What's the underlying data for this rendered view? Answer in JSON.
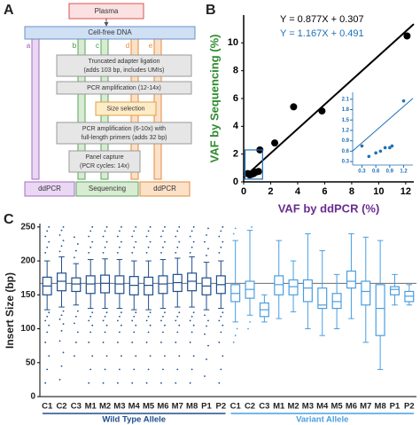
{
  "diagram": {
    "panel_label": "A",
    "source": "Plasma",
    "pool": "Cell-free DNA",
    "lanes": [
      "a",
      "b",
      "c",
      "d",
      "e"
    ],
    "steps": [
      {
        "lines": [
          "Truncated adapter ligation",
          "(adds 103 bp, includes UMIs)"
        ]
      },
      {
        "lines": [
          "PCR amplification (12-14x)"
        ]
      },
      {
        "lines": [
          "Size selection"
        ]
      },
      {
        "lines": [
          "PCR amplification (6-10x) with",
          "full-length primers (adds 32 bp)"
        ]
      },
      {
        "lines": [
          "Panel capture",
          "(PCR cycles: 14x)"
        ]
      }
    ],
    "outputs": [
      "ddPCR",
      "Sequencing",
      "ddPCR"
    ]
  },
  "chart_data": [
    {
      "type": "scatter",
      "panel_label": "B",
      "x_label": "VAF by ddPCR (%)",
      "y_label": "VAF by Sequencing (%)",
      "x": [
        0.3,
        0.45,
        0.6,
        0.75,
        0.9,
        1.1,
        1.2,
        2.3,
        3.7,
        5.8,
        12.1
      ],
      "y": [
        0.6,
        0.5,
        0.55,
        0.6,
        0.7,
        0.75,
        2.3,
        2.8,
        5.4,
        5.1,
        10.5
      ],
      "color": "#000000",
      "xlim": [
        0,
        12.6
      ],
      "ylim": [
        0,
        12
      ],
      "xticks": [
        0,
        2,
        4,
        6,
        8,
        10,
        12
      ],
      "yticks": [
        0,
        2,
        4,
        6,
        8,
        10
      ],
      "fit": {
        "slope": 0.877,
        "intercept": 0.307,
        "label": "Y = 0.877X + 0.307"
      }
    },
    {
      "type": "scatter",
      "inset": true,
      "x": [
        0.3,
        0.45,
        0.6,
        0.7,
        0.8,
        0.9,
        0.95,
        1.2
      ],
      "y": [
        0.75,
        0.45,
        0.55,
        0.6,
        0.7,
        0.7,
        0.75,
        2.05
      ],
      "color": "#1f6fb5",
      "xlim": [
        0.1,
        1.4
      ],
      "ylim": [
        0.2,
        2.3
      ],
      "xticks": [
        0.3,
        0.6,
        0.9,
        1.2
      ],
      "yticks": [
        0.3,
        0.6,
        0.9,
        1.2,
        1.5,
        1.8,
        2.1
      ],
      "fit": {
        "slope": 1.167,
        "intercept": 0.491,
        "label": "Y = 1.167X + 0.491"
      }
    },
    {
      "type": "box",
      "panel_label": "C",
      "y_label": "Insert Size (bp)",
      "ylim": [
        0,
        255
      ],
      "yticks": [
        0,
        50,
        100,
        150,
        200,
        250
      ],
      "reference_line": 167,
      "series": [
        {
          "name": "Wild Type Allele",
          "color": "#1f4e8c",
          "categories": [
            "C1",
            "C2",
            "C3",
            "M1",
            "M2",
            "M3",
            "M4",
            "M5",
            "M6",
            "M7",
            "M8",
            "P1",
            "P2"
          ],
          "boxes": [
            {
              "low": 128,
              "q1": 150,
              "median": 163,
              "q3": 176,
              "high": 200,
              "outliers": [
                20,
                40,
                60,
                80,
                95,
                105,
                112,
                118,
                124,
                212,
                220,
                228,
                236,
                244,
                250
              ]
            },
            {
              "low": 132,
              "q1": 156,
              "median": 170,
              "q3": 182,
              "high": 206,
              "outliers": [
                25,
                45,
                65,
                82,
                97,
                107,
                114,
                120,
                126,
                214,
                222,
                230,
                238,
                245,
                250
              ]
            },
            {
              "low": 135,
              "q1": 155,
              "median": 166,
              "q3": 175,
              "high": 196,
              "outliers": [
                60,
                80,
                95,
                108,
                118,
                126,
                205,
                215,
                225,
                235
              ]
            },
            {
              "low": 130,
              "q1": 152,
              "median": 166,
              "q3": 178,
              "high": 202,
              "outliers": [
                20,
                40,
                60,
                80,
                95,
                105,
                112,
                118,
                124,
                212,
                220,
                228,
                236,
                244,
                250
              ]
            },
            {
              "low": 130,
              "q1": 153,
              "median": 167,
              "q3": 179,
              "high": 203,
              "outliers": [
                20,
                40,
                60,
                80,
                95,
                105,
                112,
                118,
                124,
                212,
                220,
                228,
                236,
                244,
                250
              ]
            },
            {
              "low": 130,
              "q1": 152,
              "median": 166,
              "q3": 178,
              "high": 202,
              "outliers": [
                20,
                40,
                60,
                80,
                95,
                105,
                112,
                118,
                124,
                212,
                220,
                228,
                236,
                244,
                250
              ]
            },
            {
              "low": 128,
              "q1": 150,
              "median": 164,
              "q3": 177,
              "high": 200,
              "outliers": [
                20,
                40,
                60,
                80,
                95,
                105,
                112,
                118,
                124,
                212,
                220,
                228,
                236,
                244,
                250
              ]
            },
            {
              "low": 128,
              "q1": 150,
              "median": 164,
              "q3": 176,
              "high": 200,
              "outliers": [
                20,
                40,
                60,
                80,
                95,
                105,
                112,
                118,
                124,
                212,
                220,
                228,
                236,
                244,
                250
              ]
            },
            {
              "low": 130,
              "q1": 152,
              "median": 166,
              "q3": 178,
              "high": 202,
              "outliers": [
                20,
                40,
                60,
                80,
                95,
                105,
                112,
                118,
                124,
                212,
                220,
                228,
                236,
                244,
                250
              ]
            },
            {
              "low": 132,
              "q1": 155,
              "median": 168,
              "q3": 180,
              "high": 204,
              "outliers": [
                20,
                40,
                60,
                80,
                95,
                105,
                112,
                118,
                124,
                212,
                220,
                228,
                236,
                244,
                250
              ]
            },
            {
              "low": 132,
              "q1": 156,
              "median": 170,
              "q3": 182,
              "high": 206,
              "outliers": [
                20,
                40,
                60,
                80,
                95,
                105,
                112,
                118,
                124,
                212,
                220,
                228,
                236,
                244,
                250
              ]
            },
            {
              "low": 128,
              "q1": 150,
              "median": 163,
              "q3": 175,
              "high": 198,
              "outliers": [
                30,
                55,
                75,
                92,
                104,
                112,
                120,
                208,
                218,
                228,
                238,
                248
              ]
            },
            {
              "low": 130,
              "q1": 152,
              "median": 165,
              "q3": 178,
              "high": 200,
              "outliers": [
                20,
                40,
                60,
                80,
                95,
                105,
                112,
                118,
                124,
                212,
                220,
                228,
                236,
                244,
                250
              ]
            }
          ]
        },
        {
          "name": "Variant Allele",
          "color": "#4a9ee0",
          "categories": [
            "C1",
            "C2",
            "C3",
            "M1",
            "M2",
            "M3",
            "M4",
            "M5",
            "M6",
            "M7",
            "M8",
            "P1",
            "P2"
          ],
          "boxes": [
            {
              "low": 110,
              "q1": 140,
              "median": 152,
              "q3": 165,
              "high": 230,
              "outliers": [
                80,
                90,
                100,
                240,
                248
              ]
            },
            {
              "low": 120,
              "q1": 145,
              "median": 158,
              "q3": 170,
              "high": 245,
              "outliers": [
                100,
                110,
                250
              ]
            },
            {
              "low": 110,
              "q1": 118,
              "median": 128,
              "q3": 138,
              "high": 150,
              "outliers": []
            },
            {
              "low": 115,
              "q1": 150,
              "median": 165,
              "q3": 178,
              "high": 230,
              "outliers": []
            },
            {
              "low": 125,
              "q1": 150,
              "median": 162,
              "q3": 172,
              "high": 200,
              "outliers": []
            },
            {
              "low": 100,
              "q1": 140,
              "median": 160,
              "q3": 172,
              "high": 240,
              "outliers": []
            },
            {
              "low": 90,
              "q1": 130,
              "median": 135,
              "q3": 160,
              "high": 215,
              "outliers": []
            },
            {
              "low": 100,
              "q1": 130,
              "median": 140,
              "q3": 152,
              "high": 180,
              "outliers": []
            },
            {
              "low": 115,
              "q1": 160,
              "median": 170,
              "q3": 185,
              "high": 240,
              "outliers": []
            },
            {
              "low": 80,
              "q1": 135,
              "median": 155,
              "q3": 170,
              "high": 235,
              "outliers": []
            },
            {
              "low": 40,
              "q1": 90,
              "median": 130,
              "q3": 165,
              "high": 230,
              "outliers": []
            },
            {
              "low": 135,
              "q1": 150,
              "median": 158,
              "q3": 162,
              "high": 180,
              "outliers": []
            },
            {
              "low": 135,
              "q1": 140,
              "median": 148,
              "q3": 155,
              "high": 165,
              "outliers": []
            }
          ]
        }
      ]
    }
  ]
}
